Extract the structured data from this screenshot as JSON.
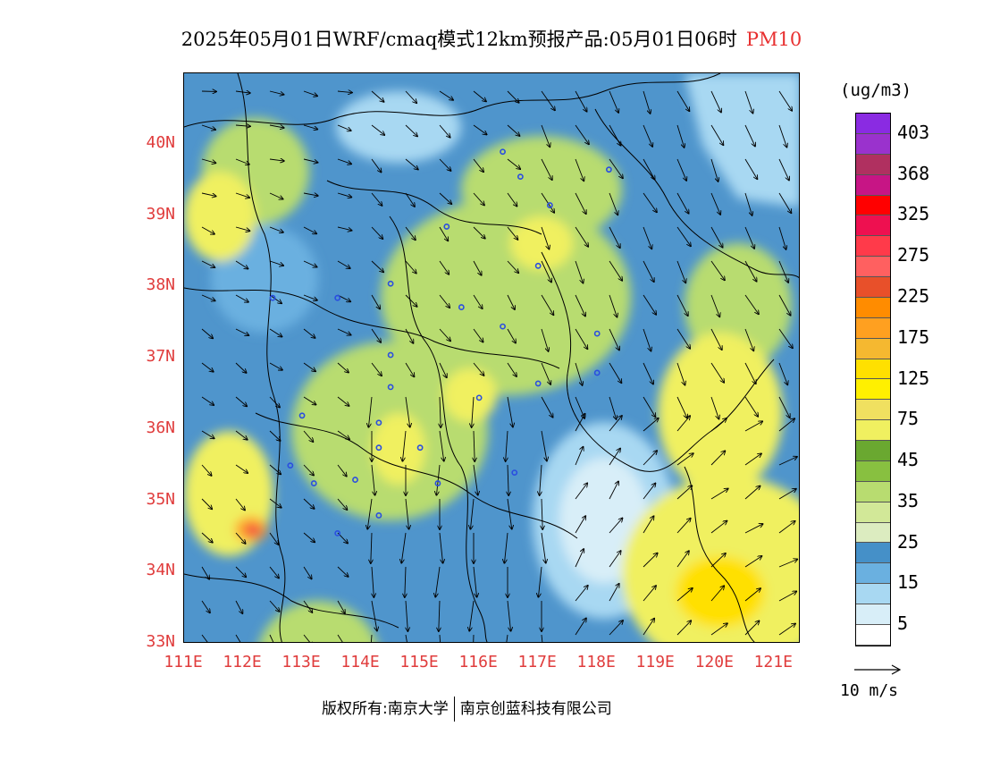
{
  "title": {
    "main": "2025年05月01日WRF/cmaq模式12km预报产品:05月01日06时",
    "variable": "PM10"
  },
  "legend": {
    "unit": "(ug/m3)",
    "swatches": [
      {
        "color": "#8a2be2"
      },
      {
        "color": "#9a32cd"
      },
      {
        "color": "#b03060"
      },
      {
        "color": "#c71585"
      },
      {
        "color": "#ff0000"
      },
      {
        "color": "#ee1050"
      },
      {
        "color": "#ff3a4a"
      },
      {
        "color": "#ff6060"
      },
      {
        "color": "#e8502a"
      },
      {
        "color": "#ff8c00"
      },
      {
        "color": "#ffa020"
      },
      {
        "color": "#f5b830"
      },
      {
        "color": "#ffe000"
      },
      {
        "color": "#fff000"
      },
      {
        "color": "#f0e060"
      },
      {
        "color": "#f0f060"
      },
      {
        "color": "#6aa830"
      },
      {
        "color": "#88c040"
      },
      {
        "color": "#b8dc70"
      },
      {
        "color": "#d2e898"
      },
      {
        "color": "#dcecc0"
      },
      {
        "color": "#4590c8"
      },
      {
        "color": "#6ab0e0"
      },
      {
        "color": "#a8d8f2"
      },
      {
        "color": "#d8eef8"
      },
      {
        "color": "#ffffff"
      }
    ],
    "ticks": [
      "403",
      "368",
      "325",
      "275",
      "225",
      "175",
      "125",
      "75",
      "45",
      "35",
      "25",
      "15",
      "5"
    ]
  },
  "axes": {
    "lat_labels": [
      "40N",
      "39N",
      "38N",
      "37N",
      "36N",
      "35N",
      "34N",
      "33N"
    ],
    "lon_labels": [
      "111E",
      "112E",
      "113E",
      "114E",
      "115E",
      "116E",
      "117E",
      "118E",
      "119E",
      "120E",
      "121E"
    ]
  },
  "wind_reference": {
    "label": "10 m/s"
  },
  "footer": {
    "copyright": "版权所有:南京大学",
    "company": "南京创蓝科技有限公司"
  },
  "map": {
    "background_color": "#4f95cc",
    "station_color": "#2a4ee0",
    "stations": [
      {
        "lon": 116.4,
        "lat": 39.9
      },
      {
        "lon": 116.7,
        "lat": 39.55
      },
      {
        "lon": 117.2,
        "lat": 39.15
      },
      {
        "lon": 118.2,
        "lat": 39.65
      },
      {
        "lon": 115.45,
        "lat": 38.85
      },
      {
        "lon": 114.5,
        "lat": 38.05
      },
      {
        "lon": 113.6,
        "lat": 37.85
      },
      {
        "lon": 115.7,
        "lat": 37.72
      },
      {
        "lon": 116.4,
        "lat": 37.45
      },
      {
        "lon": 117.0,
        "lat": 38.3
      },
      {
        "lon": 118.0,
        "lat": 37.35
      },
      {
        "lon": 114.5,
        "lat": 37.05
      },
      {
        "lon": 114.5,
        "lat": 36.6
      },
      {
        "lon": 116.0,
        "lat": 36.45
      },
      {
        "lon": 117.0,
        "lat": 36.65
      },
      {
        "lon": 118.0,
        "lat": 36.8
      },
      {
        "lon": 114.3,
        "lat": 36.1
      },
      {
        "lon": 113.0,
        "lat": 36.2
      },
      {
        "lon": 114.3,
        "lat": 35.75
      },
      {
        "lon": 115.0,
        "lat": 35.75
      },
      {
        "lon": 112.8,
        "lat": 35.5
      },
      {
        "lon": 113.2,
        "lat": 35.25
      },
      {
        "lon": 113.9,
        "lat": 35.3
      },
      {
        "lon": 115.3,
        "lat": 35.25
      },
      {
        "lon": 116.6,
        "lat": 35.4
      },
      {
        "lon": 114.3,
        "lat": 34.8
      },
      {
        "lon": 113.6,
        "lat": 34.55
      },
      {
        "lon": 112.5,
        "lat": 37.85
      }
    ]
  }
}
